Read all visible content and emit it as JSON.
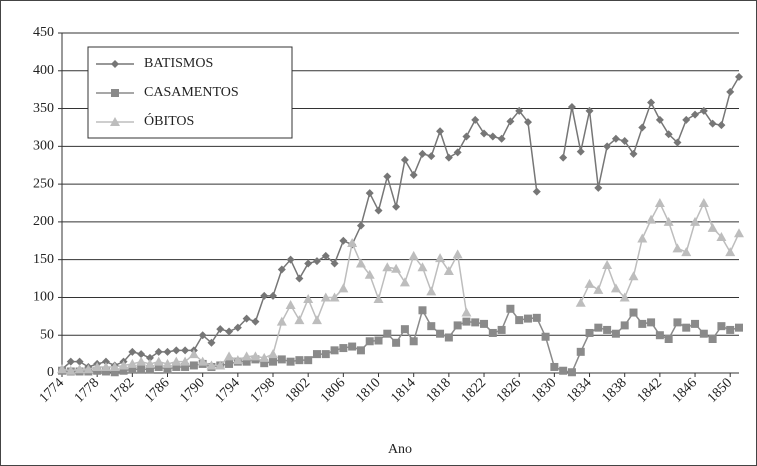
{
  "chart_data": {
    "type": "line",
    "x_label": "Ano",
    "x": [
      1774,
      1775,
      1776,
      1777,
      1778,
      1779,
      1780,
      1781,
      1782,
      1783,
      1784,
      1785,
      1786,
      1787,
      1788,
      1789,
      1790,
      1791,
      1792,
      1793,
      1794,
      1795,
      1796,
      1797,
      1798,
      1799,
      1800,
      1801,
      1802,
      1803,
      1804,
      1805,
      1806,
      1807,
      1808,
      1809,
      1810,
      1811,
      1812,
      1813,
      1814,
      1815,
      1816,
      1817,
      1818,
      1819,
      1820,
      1821,
      1822,
      1823,
      1824,
      1825,
      1826,
      1827,
      1828,
      1829,
      1830,
      1831,
      1832,
      1833,
      1834,
      1835,
      1836,
      1837,
      1838,
      1839,
      1840,
      1841,
      1842,
      1843,
      1844,
      1845,
      1846,
      1847,
      1848,
      1849,
      1850,
      1851
    ],
    "xlim": [
      1774,
      1851
    ],
    "xticks": [
      1774,
      1778,
      1782,
      1786,
      1790,
      1794,
      1798,
      1802,
      1806,
      1810,
      1814,
      1818,
      1822,
      1826,
      1830,
      1834,
      1838,
      1842,
      1846,
      1850
    ],
    "ylim": [
      0,
      450
    ],
    "yticks": [
      0,
      50,
      100,
      150,
      200,
      250,
      300,
      350,
      400,
      450
    ],
    "grid": true,
    "legend": "upper left",
    "series": [
      {
        "name": "BATISMOS",
        "color": "#767676",
        "marker": "diamond",
        "values": [
          5,
          15,
          15,
          8,
          12,
          15,
          10,
          15,
          28,
          25,
          20,
          28,
          28,
          30,
          30,
          30,
          50,
          40,
          58,
          55,
          60,
          72,
          68,
          102,
          102,
          137,
          150,
          125,
          145,
          148,
          155,
          145,
          175,
          170,
          195,
          238,
          215,
          260,
          220,
          282,
          262,
          290,
          287,
          320,
          285,
          292,
          313,
          335,
          317,
          313,
          310,
          333,
          347,
          332,
          240,
          null,
          null,
          285,
          352,
          293,
          347,
          245,
          300,
          310,
          307,
          290,
          325,
          358,
          335,
          316,
          305,
          335,
          342,
          347,
          330,
          328,
          372,
          392
        ]
      },
      {
        "name": "CASAMENTOS",
        "color": "#8a8a8a",
        "marker": "square",
        "values": [
          3,
          2,
          2,
          2,
          3,
          2,
          1,
          3,
          5,
          5,
          5,
          8,
          5,
          8,
          8,
          10,
          12,
          8,
          10,
          12,
          15,
          15,
          18,
          13,
          15,
          18,
          15,
          17,
          17,
          25,
          25,
          30,
          33,
          35,
          30,
          42,
          43,
          52,
          40,
          58,
          42,
          83,
          62,
          52,
          47,
          63,
          68,
          67,
          65,
          53,
          57,
          85,
          70,
          72,
          73,
          48,
          8,
          3,
          1,
          28,
          53,
          60,
          57,
          52,
          63,
          80,
          65,
          67,
          50,
          45,
          67,
          60,
          65,
          52,
          45,
          62,
          57,
          60
        ]
      },
      {
        "name": "ÓBITOS",
        "color": "#bdbdbd",
        "marker": "triangle",
        "values": [
          5,
          3,
          5,
          5,
          8,
          8,
          8,
          10,
          12,
          15,
          12,
          15,
          12,
          15,
          15,
          25,
          15,
          10,
          10,
          22,
          17,
          22,
          22,
          20,
          25,
          68,
          90,
          70,
          98,
          70,
          100,
          100,
          112,
          172,
          145,
          130,
          98,
          140,
          138,
          120,
          155,
          140,
          108,
          152,
          135,
          157,
          80,
          null,
          null,
          null,
          null,
          null,
          null,
          null,
          null,
          null,
          null,
          null,
          null,
          93,
          118,
          110,
          143,
          112,
          100,
          128,
          178,
          203,
          225,
          200,
          165,
          160,
          200,
          225,
          192,
          180,
          160,
          185
        ]
      }
    ]
  }
}
